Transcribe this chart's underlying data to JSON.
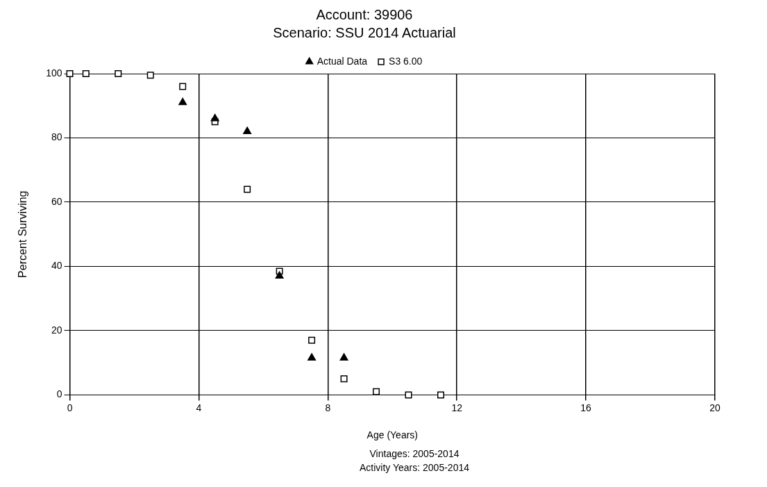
{
  "chart_data": {
    "type": "scatter",
    "title": "Account: 39906",
    "subtitle": "Scenario: SSU 2014 Actuarial",
    "xlabel": "Age (Years)",
    "ylabel": "Percent Surviving",
    "annotations": [
      "Vintages: 2005-2014",
      "Activity Years: 2005-2014"
    ],
    "series": [
      {
        "name": "Actual Data",
        "color": "#000000",
        "marker": "triangle",
        "x": [
          3.5,
          4.5,
          5.5,
          6.5,
          7.5,
          8.5
        ],
        "values": [
          91,
          86,
          82,
          37,
          11.5,
          11.5
        ]
      },
      {
        "name": "S3 6.00",
        "color": "#000000",
        "marker": "square",
        "x": [
          0,
          0.5,
          1.5,
          2.5,
          3.5,
          4.5,
          5.5,
          6.5,
          7.5,
          8.5,
          9.5,
          10.5,
          11.5
        ],
        "values": [
          100,
          100,
          100,
          99.5,
          96,
          85,
          64,
          38.5,
          17,
          5,
          1,
          0,
          0
        ]
      }
    ],
    "xlim": [
      0,
      20
    ],
    "xticks": [
      0,
      4,
      8,
      12,
      16,
      20
    ],
    "ylim": [
      0,
      100
    ],
    "yticks": [
      0,
      20,
      40,
      60,
      80,
      100
    ],
    "grid": true,
    "legend": "top"
  }
}
